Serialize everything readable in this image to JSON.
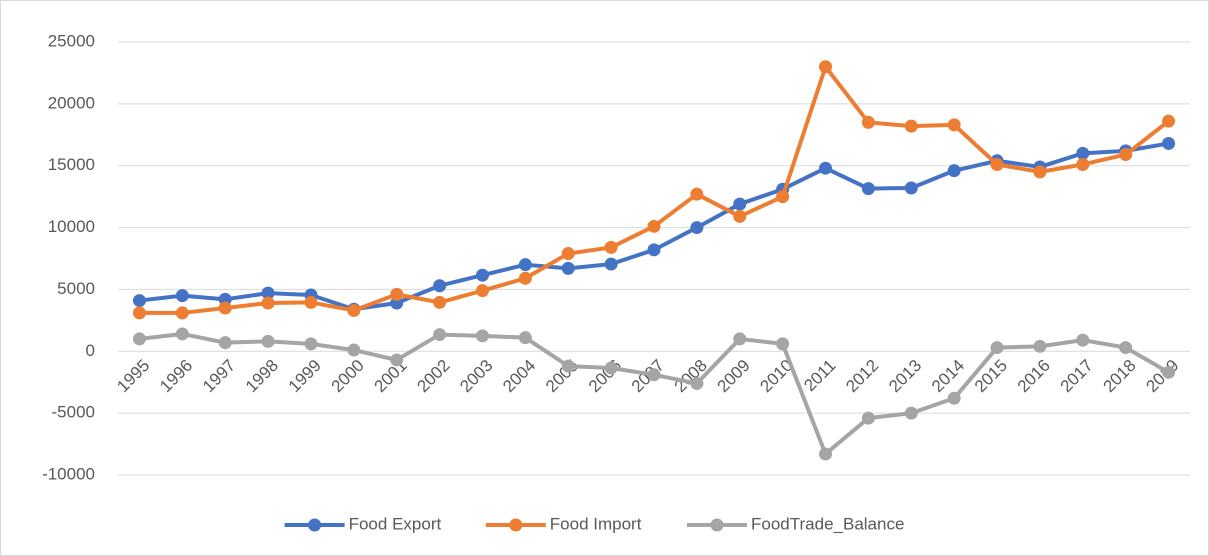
{
  "chart_data": {
    "type": "line",
    "categories": [
      "1995",
      "1996",
      "1997",
      "1998",
      "1999",
      "2000",
      "2001",
      "2002",
      "2003",
      "2004",
      "2005",
      "2006",
      "2007",
      "2008",
      "2009",
      "2010",
      "2011",
      "2012",
      "2013",
      "2014",
      "2015",
      "2016",
      "2017",
      "2018",
      "2019"
    ],
    "series": [
      {
        "name": "Food Export",
        "color": "#4472c4",
        "values": [
          4100,
          4500,
          4200,
          4700,
          4550,
          3400,
          3900,
          5300,
          6150,
          7000,
          6700,
          7050,
          8200,
          10000,
          11900,
          13100,
          14800,
          13150,
          13200,
          14600,
          15400,
          14900,
          16000,
          16200,
          16800
        ]
      },
      {
        "name": "Food Import",
        "color": "#ed7d31",
        "values": [
          3100,
          3100,
          3500,
          3900,
          3950,
          3300,
          4600,
          3950,
          4900,
          5900,
          7900,
          8400,
          10100,
          12700,
          10900,
          12500,
          23000,
          18500,
          18200,
          18300,
          15100,
          14500,
          15100,
          15900,
          18600
        ]
      },
      {
        "name": "FoodTrade_Balance",
        "color": "#a5a5a5",
        "values": [
          1000,
          1400,
          700,
          800,
          600,
          100,
          -700,
          1350,
          1250,
          1100,
          -1200,
          -1350,
          -1900,
          -2600,
          1000,
          600,
          -8300,
          -5400,
          -5000,
          -3800,
          300,
          400,
          900,
          300,
          -1700
        ]
      }
    ],
    "ylim": [
      -10000,
      25000
    ],
    "yticks": [
      -10000,
      -5000,
      0,
      5000,
      10000,
      15000,
      20000,
      25000
    ],
    "grid": true,
    "legend": "bottom"
  }
}
